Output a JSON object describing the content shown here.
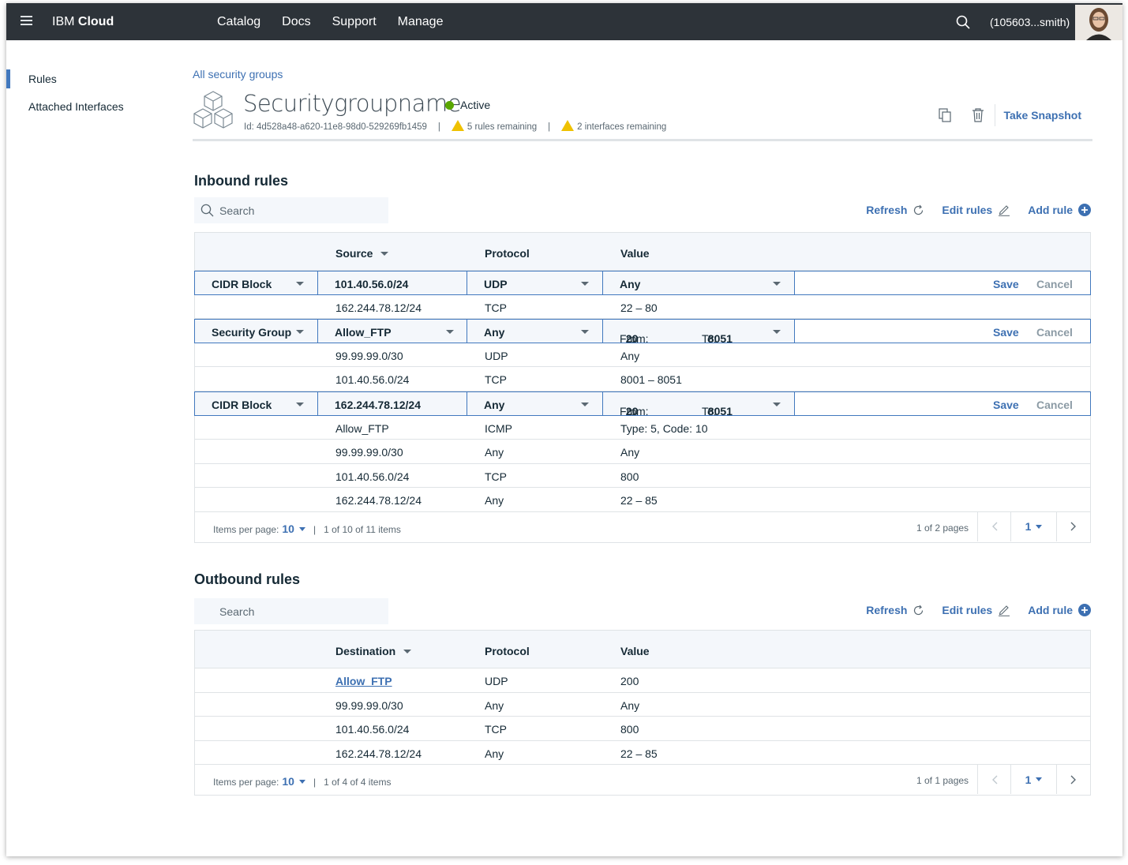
{
  "nav": {
    "brand_light": "IBM",
    "brand_bold": "Cloud",
    "links": [
      "Catalog",
      "Docs",
      "Support",
      "Manage"
    ],
    "user": "(105603...smith)"
  },
  "sidebar": {
    "items": [
      {
        "label": "Rules",
        "active": true
      },
      {
        "label": "Attached Interfaces",
        "active": false
      }
    ]
  },
  "header": {
    "breadcrumb": "All security groups",
    "title": "Securitygroupname",
    "status": "Active",
    "id": "Id: 4d528a48-a620-11e8-98d0-529269fb1459",
    "rules_remaining": "5 rules remaining",
    "interfaces_remaining": "2 interfaces remaining",
    "snapshot_label": "Take Snapshot"
  },
  "inbound": {
    "title": "Inbound rules",
    "search_placeholder": "Search",
    "actions": {
      "refresh": "Refresh",
      "edit": "Edit rules",
      "add": "Add rule"
    },
    "columns": {
      "source": "Source",
      "protocol": "Protocol",
      "value": "Value"
    },
    "edit_rows": [
      {
        "type": "CIDR Block",
        "source": "101.40.56.0/24",
        "protocol": "UDP",
        "value": "Any",
        "save": "Save",
        "cancel": "Cancel"
      },
      {
        "type": "Security Group",
        "source": "Allow_FTP",
        "protocol": "Any",
        "from_label": "From:",
        "from": "20",
        "to_label": "To:",
        "to": "8051",
        "save": "Save",
        "cancel": "Cancel"
      },
      {
        "type": "CIDR Block",
        "source": "162.244.78.12/24",
        "protocol": "Any",
        "from_label": "From:",
        "from": "20",
        "to_label": "To:",
        "to": "8051",
        "save": "Save",
        "cancel": "Cancel"
      }
    ],
    "rows": [
      {
        "source": "162.244.78.12/24",
        "protocol": "TCP",
        "value": "22 – 80"
      },
      {
        "source": "99.99.99.0/30",
        "protocol": "UDP",
        "value": "Any"
      },
      {
        "source": "101.40.56.0/24",
        "protocol": "TCP",
        "value": "8001 – 8051"
      },
      {
        "source": "Allow_FTP",
        "protocol": "ICMP",
        "value": "Type: 5,  Code: 10"
      },
      {
        "source": "99.99.99.0/30",
        "protocol": "Any",
        "value": "Any"
      },
      {
        "source": "101.40.56.0/24",
        "protocol": "TCP",
        "value": "800"
      },
      {
        "source": "162.244.78.12/24",
        "protocol": "Any",
        "value": "22 – 85"
      }
    ],
    "pager": {
      "items_per_page_label": "Items per page:",
      "per_page": "10",
      "range": "1 of 10 of 11 items",
      "pages": "1 of 2 pages",
      "page": "1"
    }
  },
  "outbound": {
    "title": "Outbound rules",
    "search_placeholder": "Search",
    "actions": {
      "refresh": "Refresh",
      "edit": "Edit rules",
      "add": "Add rule"
    },
    "columns": {
      "destination": "Destination",
      "protocol": "Protocol",
      "value": "Value"
    },
    "rows": [
      {
        "destination": "Allow_FTP",
        "protocol": "UDP",
        "value": "200"
      },
      {
        "destination": "99.99.99.0/30",
        "protocol": "Any",
        "value": "Any"
      },
      {
        "destination": "101.40.56.0/24",
        "protocol": "TCP",
        "value": "800"
      },
      {
        "destination": "162.244.78.12/24",
        "protocol": "Any",
        "value": "22 – 85"
      }
    ],
    "pager": {
      "items_per_page_label": "Items per page:",
      "per_page": "10",
      "range": "1 of 4 of 4 items",
      "pages": "1 of 1 pages",
      "page": "1"
    }
  },
  "colors": {
    "nav_bg": "#2d3339",
    "accent": "#3d70b2",
    "active_green": "#5aa700",
    "warning": "#efc100"
  }
}
